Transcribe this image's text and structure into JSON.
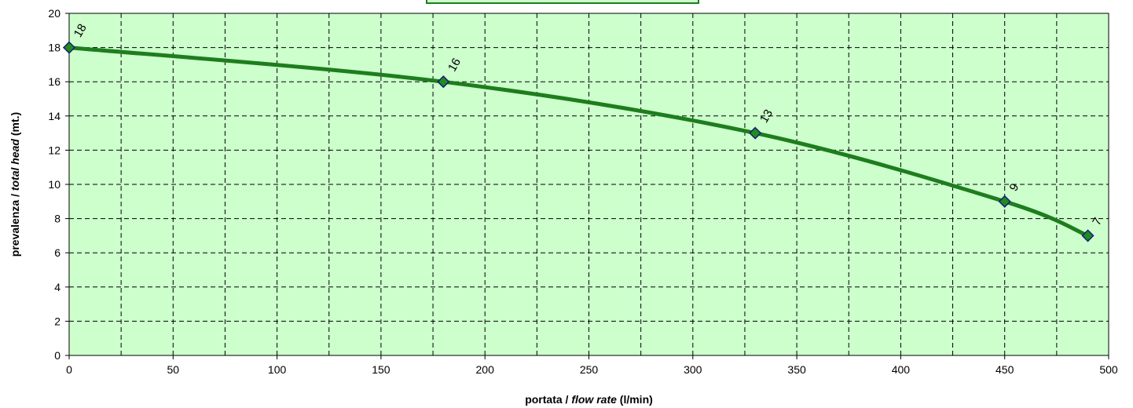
{
  "chart_data": {
    "type": "line",
    "title": "",
    "xlabel": {
      "prefix": "portata / ",
      "italic": "flow rate",
      "suffix": " (l/min)"
    },
    "ylabel": {
      "prefix": "prevalenza / ",
      "italic": "total head",
      "suffix": " (mt.)"
    },
    "xlim": [
      0,
      500
    ],
    "ylim": [
      0,
      20
    ],
    "x_ticks": [
      0,
      50,
      100,
      150,
      200,
      250,
      300,
      350,
      400,
      450,
      500
    ],
    "y_ticks": [
      0,
      2,
      4,
      6,
      8,
      10,
      12,
      14,
      16,
      18,
      20
    ],
    "grid": true,
    "minor_x_grid": [
      25,
      75,
      125,
      175,
      225,
      275,
      325,
      375,
      425,
      475
    ],
    "series": [
      {
        "x": [
          0,
          180,
          330,
          450,
          490
        ],
        "y": [
          18,
          16,
          13,
          9,
          7
        ],
        "labels": [
          "18",
          "16",
          "13",
          "9",
          "7"
        ]
      }
    ],
    "colors": {
      "plot_background": "#ccffcc",
      "line": "#1e7d1e",
      "marker_fill": "#1e8c1e",
      "marker_stroke": "#1a1a7a",
      "grid": "#000000"
    }
  }
}
